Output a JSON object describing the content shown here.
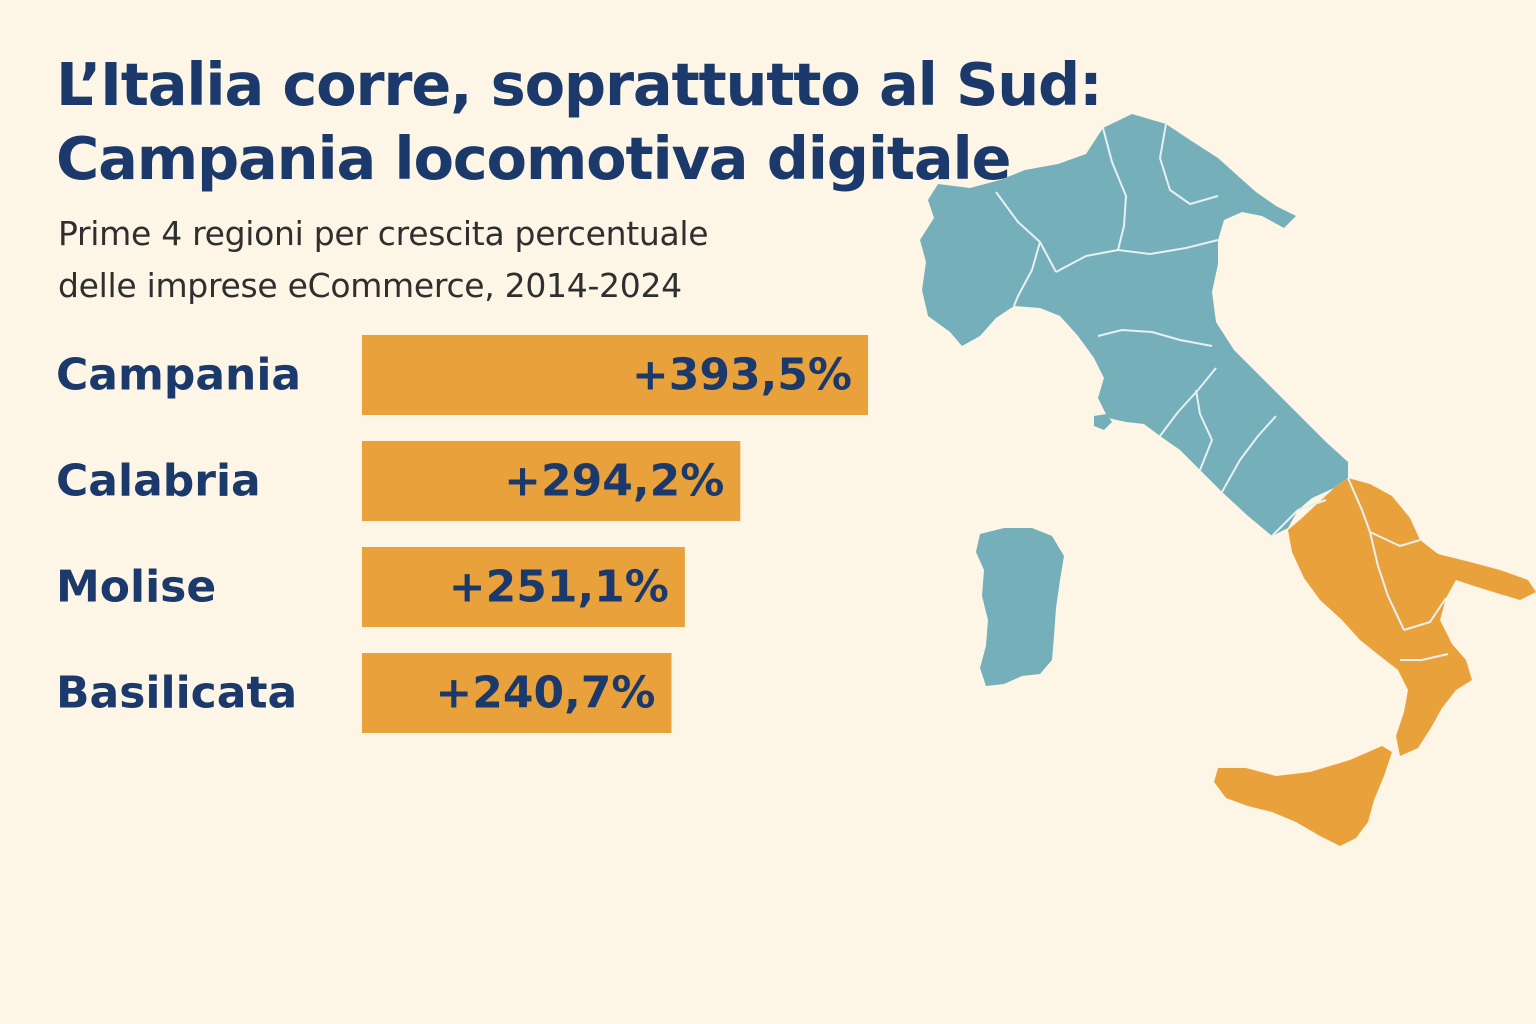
{
  "title_lines": [
    "L’Italia corre, soprattutto al Sud:",
    "Campania locomotiva digitale"
  ],
  "subtitle_lines": [
    "Prime 4 regioni per crescita percentuale",
    "delle imprese eCommerce, 2014-2024"
  ],
  "colors": {
    "background": "#fdf6e6",
    "title": "#1b3a6b",
    "bar": "#e9a23b",
    "map_north_center": "#75afba",
    "map_south": "#e9a23b",
    "region_border": "#e6f1f2"
  },
  "chart_data": {
    "type": "bar",
    "orientation": "horizontal",
    "categories": [
      "Campania",
      "Calabria",
      "Molise",
      "Basilicata"
    ],
    "values": [
      393.5,
      294.2,
      251.1,
      240.7
    ],
    "value_labels": [
      "+393,5%",
      "+294,2%",
      "+251,1%",
      "+240,7%"
    ],
    "unit": "%",
    "title": "L’Italia corre, soprattutto al Sud: Campania locomotiva digitale",
    "subtitle": "Prime 4 regioni per crescita percentuale delle imprese eCommerce, 2014-2024",
    "xlabel": "",
    "ylabel": "",
    "grid": false,
    "legend": "none"
  },
  "map": {
    "highlighted_area": "Sud Italia",
    "highlight_color_key": "map_south"
  }
}
